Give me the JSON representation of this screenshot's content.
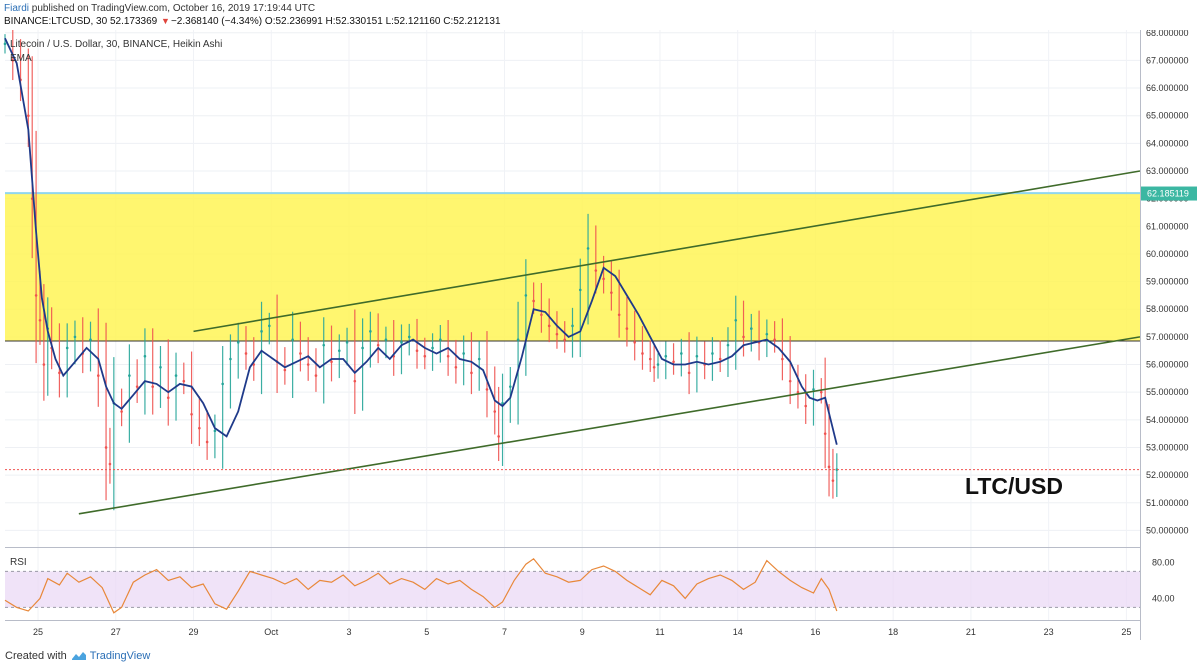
{
  "header": {
    "author": "Fiardi",
    "published_text": "published on TradingView.com, October 16, 2019 17:19:44 UTC",
    "symbol": "BINANCE:LTCUSD, 30",
    "last": "52.173369",
    "change_arrow": "▼",
    "change": "−2.368140 (−4.34%)",
    "open": "O:52.236991",
    "high": "H:52.330151",
    "low": "L:52.121160",
    "close": "C:52.212131"
  },
  "footer": {
    "created_with": "Created with",
    "brand": "TradingView"
  },
  "chart_data": {
    "type": "line",
    "title": "Litecoin / U.S. Dollar, 30, BINANCE, Heikin Ashi",
    "indicator_label": "EMA",
    "price_axis": {
      "min": 49.4,
      "max": 68.1,
      "ticks": [
        "50.000000",
        "51.000000",
        "52.000000",
        "53.000000",
        "54.000000",
        "55.000000",
        "56.000000",
        "57.000000",
        "58.000000",
        "59.000000",
        "60.000000",
        "61.000000",
        "62.000000",
        "63.000000",
        "64.000000",
        "65.000000",
        "66.000000",
        "67.000000",
        "68.000000"
      ],
      "current_price_label": "62.185119"
    },
    "time_axis": {
      "labels": [
        "25",
        "27",
        "29",
        "Oct",
        "3",
        "5",
        "7",
        "9",
        "11",
        "14",
        "16",
        "18",
        "21",
        "23",
        "25"
      ],
      "positions": [
        0.25,
        2.25,
        4.25,
        6.25,
        8.25,
        10.25,
        12.25,
        14.25,
        16.25,
        18.25,
        20.25,
        22.25,
        24.25,
        26.25,
        28.25
      ],
      "range": [
        -0.6,
        28.6
      ]
    },
    "zone": {
      "from": 56.85,
      "to": 62.2,
      "color": "#fff44f"
    },
    "trendlines": [
      {
        "name": "upper channel",
        "x": [
          4.25,
          28.6
        ],
        "y": [
          57.2,
          63.0
        ]
      },
      {
        "name": "lower channel",
        "x": [
          1.3,
          28.6
        ],
        "y": [
          50.6,
          57.0
        ]
      }
    ],
    "ema_series": {
      "color": "#1f3a8a",
      "x": [
        -0.6,
        -0.3,
        0.0,
        0.2,
        0.35,
        0.5,
        0.7,
        0.9,
        1.2,
        1.5,
        1.8,
        2.0,
        2.2,
        2.4,
        2.7,
        3.0,
        3.3,
        3.6,
        3.9,
        4.2,
        4.5,
        4.8,
        5.1,
        5.4,
        5.7,
        6.0,
        6.3,
        6.6,
        6.9,
        7.2,
        7.5,
        7.8,
        8.1,
        8.4,
        8.7,
        9.0,
        9.3,
        9.6,
        9.9,
        10.2,
        10.5,
        10.8,
        11.1,
        11.4,
        11.7,
        12.0,
        12.2,
        12.4,
        12.7,
        13.0,
        13.3,
        13.6,
        13.9,
        14.2,
        14.5,
        14.8,
        15.1,
        15.4,
        15.7,
        16.0,
        16.3,
        16.6,
        16.9,
        17.2,
        17.5,
        17.8,
        18.1,
        18.4,
        18.7,
        19.0,
        19.3,
        19.6,
        19.9,
        20.1,
        20.3,
        20.5,
        20.8
      ],
      "y": [
        67.8,
        66.9,
        64.5,
        60.8,
        58.4,
        57.2,
        56.2,
        55.6,
        56.1,
        56.6,
        56.2,
        55.2,
        54.6,
        54.4,
        54.9,
        55.4,
        55.3,
        55.0,
        55.3,
        55.2,
        54.6,
        53.7,
        53.4,
        54.3,
        55.9,
        56.5,
        56.2,
        55.9,
        56.1,
        56.3,
        55.9,
        56.2,
        56.2,
        55.7,
        56.1,
        56.6,
        56.2,
        56.7,
        56.9,
        56.6,
        56.4,
        56.6,
        56.2,
        56.1,
        55.8,
        54.7,
        54.5,
        54.8,
        56.3,
        58.0,
        57.9,
        57.4,
        57.0,
        57.2,
        58.3,
        59.5,
        59.2,
        58.5,
        57.8,
        57.0,
        56.2,
        56.0,
        56.0,
        56.1,
        56.0,
        56.1,
        56.3,
        56.7,
        56.8,
        56.9,
        56.6,
        56.1,
        55.2,
        54.8,
        54.7,
        54.8,
        53.1
      ]
    },
    "price_series": {
      "color": "#26a69a",
      "x": [
        -0.6,
        -0.4,
        -0.2,
        0.0,
        0.1,
        0.2,
        0.3,
        0.4,
        0.5,
        0.6,
        0.8,
        1.0,
        1.2,
        1.4,
        1.6,
        1.8,
        2.0,
        2.1,
        2.2,
        2.4,
        2.6,
        2.8,
        3.0,
        3.2,
        3.4,
        3.6,
        3.8,
        4.0,
        4.2,
        4.4,
        4.6,
        4.8,
        5.0,
        5.2,
        5.4,
        5.6,
        5.8,
        6.0,
        6.2,
        6.4,
        6.6,
        6.8,
        7.0,
        7.2,
        7.4,
        7.6,
        7.8,
        8.0,
        8.2,
        8.4,
        8.6,
        8.8,
        9.0,
        9.2,
        9.4,
        9.6,
        9.8,
        10.0,
        10.2,
        10.4,
        10.6,
        10.8,
        11.0,
        11.2,
        11.4,
        11.6,
        11.8,
        12.0,
        12.1,
        12.2,
        12.4,
        12.6,
        12.8,
        13.0,
        13.2,
        13.4,
        13.6,
        13.8,
        14.0,
        14.2,
        14.4,
        14.6,
        14.8,
        15.0,
        15.2,
        15.4,
        15.6,
        15.8,
        16.0,
        16.1,
        16.2,
        16.4,
        16.6,
        16.8,
        17.0,
        17.2,
        17.4,
        17.6,
        17.8,
        18.0,
        18.2,
        18.4,
        18.6,
        18.8,
        19.0,
        19.2,
        19.4,
        19.6,
        19.8,
        20.0,
        20.2,
        20.4,
        20.5,
        20.6,
        20.7,
        20.8
      ],
      "y": [
        67.6,
        67.0,
        66.3,
        65.0,
        62.0,
        58.5,
        57.6,
        56.0,
        57.3,
        56.6,
        55.7,
        56.6,
        57.0,
        56.4,
        56.9,
        55.6,
        53.0,
        52.4,
        54.6,
        54.3,
        55.6,
        55.2,
        56.3,
        55.2,
        55.9,
        54.8,
        55.6,
        55.4,
        54.2,
        53.7,
        53.2,
        53.6,
        55.3,
        56.2,
        56.8,
        56.4,
        56.0,
        57.2,
        57.4,
        56.1,
        55.8,
        56.9,
        56.4,
        56.0,
        55.6,
        56.7,
        56.1,
        56.5,
        56.8,
        55.4,
        56.6,
        57.2,
        56.7,
        56.9,
        56.3,
        56.8,
        57.0,
        56.5,
        56.3,
        56.6,
        56.9,
        56.3,
        55.9,
        56.4,
        55.7,
        56.2,
        55.1,
        54.3,
        53.4,
        54.6,
        55.2,
        56.9,
        58.5,
        58.3,
        57.8,
        57.4,
        57.1,
        56.9,
        57.4,
        58.7,
        60.2,
        59.4,
        59.1,
        58.6,
        57.8,
        57.3,
        56.8,
        56.4,
        56.2,
        55.9,
        56.0,
        56.3,
        56.1,
        56.4,
        55.7,
        56.3,
        56.0,
        56.4,
        56.2,
        56.7,
        57.6,
        57.0,
        57.3,
        56.8,
        57.1,
        56.9,
        56.2,
        55.4,
        55.0,
        54.5,
        55.1,
        55.0,
        53.5,
        52.3,
        51.8,
        52.2
      ]
    },
    "rsi": {
      "label": "RSI",
      "min": 16,
      "max": 96,
      "ticks": [
        "40.00",
        "80.00"
      ],
      "band": [
        30,
        70
      ],
      "color": "#e8883a",
      "x": [
        -0.6,
        -0.3,
        0.0,
        0.3,
        0.5,
        0.8,
        1.0,
        1.3,
        1.6,
        1.9,
        2.2,
        2.4,
        2.7,
        3.0,
        3.3,
        3.6,
        3.9,
        4.2,
        4.5,
        4.8,
        5.1,
        5.4,
        5.7,
        6.0,
        6.3,
        6.6,
        6.9,
        7.2,
        7.5,
        7.8,
        8.1,
        8.4,
        8.7,
        9.0,
        9.3,
        9.6,
        9.9,
        10.2,
        10.5,
        10.8,
        11.1,
        11.4,
        11.7,
        12.0,
        12.2,
        12.5,
        12.8,
        13.0,
        13.3,
        13.6,
        13.9,
        14.2,
        14.5,
        14.8,
        15.1,
        15.4,
        15.7,
        16.0,
        16.3,
        16.6,
        16.9,
        17.2,
        17.5,
        17.8,
        18.1,
        18.4,
        18.7,
        19.0,
        19.3,
        19.6,
        19.9,
        20.2,
        20.4,
        20.6,
        20.8
      ],
      "y": [
        38,
        30,
        26,
        40,
        62,
        55,
        68,
        58,
        64,
        52,
        24,
        30,
        58,
        66,
        72,
        60,
        64,
        52,
        56,
        34,
        28,
        48,
        70,
        66,
        62,
        56,
        62,
        50,
        60,
        58,
        66,
        54,
        60,
        68,
        56,
        62,
        58,
        50,
        62,
        56,
        60,
        50,
        42,
        30,
        36,
        60,
        78,
        84,
        68,
        64,
        58,
        60,
        72,
        76,
        70,
        60,
        52,
        44,
        60,
        54,
        40,
        56,
        62,
        66,
        60,
        50,
        58,
        82,
        70,
        60,
        52,
        46,
        62,
        50,
        26
      ]
    }
  }
}
